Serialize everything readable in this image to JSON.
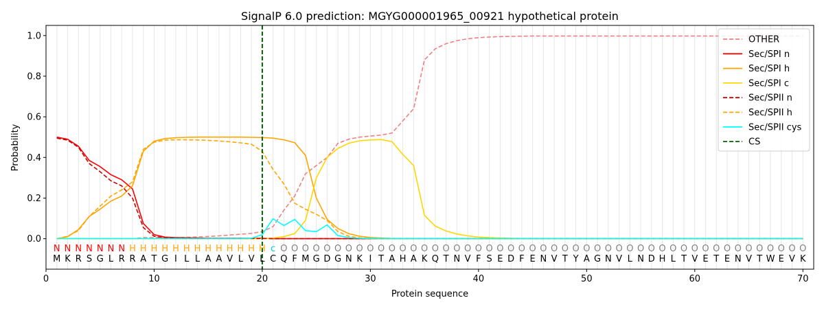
{
  "chart_data": {
    "type": "line",
    "title": "SignalP 6.0 prediction: MGYG000001965_00921 hypothetical protein",
    "xlabel": "Protein sequence",
    "ylabel": "Probability",
    "xlim": [
      0,
      71
    ],
    "ylim": [
      -0.15,
      1.05
    ],
    "xticks": [
      0,
      10,
      20,
      30,
      40,
      50,
      60,
      70
    ],
    "yticks": [
      0.0,
      0.2,
      0.4,
      0.6,
      0.8,
      1.0
    ],
    "ytick_labels": [
      "0.0",
      "0.2",
      "0.4",
      "0.6",
      "0.8",
      "1.0"
    ],
    "grid": "vertical lines at each residue",
    "legend_position": "top-right",
    "sequence": [
      "M",
      "K",
      "R",
      "S",
      "G",
      "L",
      "R",
      "R",
      "A",
      "T",
      "G",
      "I",
      "L",
      "L",
      "A",
      "A",
      "V",
      "L",
      "V",
      "L",
      "C",
      "Q",
      "F",
      "M",
      "G",
      "D",
      "G",
      "N",
      "K",
      "I",
      "T",
      "A",
      "H",
      "A",
      "K",
      "Q",
      "T",
      "N",
      "V",
      "F",
      "S",
      "E",
      "D",
      "F",
      "E",
      "N",
      "V",
      "T",
      "Y",
      "A",
      "G",
      "N",
      "V",
      "L",
      "N",
      "D",
      "H",
      "L",
      "T",
      "V",
      "E",
      "T",
      "E",
      "N",
      "V",
      "T",
      "W",
      "E",
      "V",
      "K"
    ],
    "labels": [
      "N",
      "N",
      "N",
      "N",
      "N",
      "N",
      "N",
      "H",
      "H",
      "H",
      "H",
      "H",
      "H",
      "H",
      "H",
      "H",
      "H",
      "H",
      "H",
      "H",
      "c",
      "O",
      "O",
      "O",
      "O",
      "O",
      "O",
      "O",
      "O",
      "O",
      "O",
      "O",
      "O",
      "O",
      "O",
      "O",
      "O",
      "O",
      "O",
      "O",
      "O",
      "O",
      "O",
      "O",
      "O",
      "O",
      "O",
      "O",
      "O",
      "O",
      "O",
      "O",
      "O",
      "O",
      "O",
      "O",
      "O",
      "O",
      "O",
      "O",
      "O",
      "O",
      "O",
      "O",
      "O",
      "O",
      "O",
      "O",
      "O",
      "O"
    ],
    "label_colors": {
      "N": "#ff0000",
      "H": "#ffa500",
      "c": "#00ced1",
      "O": "#808080"
    },
    "cleavage_site": 20,
    "series": [
      {
        "name": "OTHER",
        "color": "#f08080",
        "dash": "dashed",
        "values": [
          0.0,
          0.0,
          0.0,
          0.0,
          0.0,
          0.0,
          0.0,
          0.0,
          0.005,
          0.005,
          0.005,
          0.005,
          0.007,
          0.009,
          0.011,
          0.014,
          0.018,
          0.022,
          0.026,
          0.035,
          0.06,
          0.14,
          0.21,
          0.32,
          0.36,
          0.4,
          0.47,
          0.49,
          0.5,
          0.505,
          0.51,
          0.52,
          0.58,
          0.64,
          0.88,
          0.935,
          0.96,
          0.975,
          0.984,
          0.99,
          0.993,
          0.995,
          0.996,
          0.997,
          0.998,
          0.998,
          0.998,
          0.998,
          0.998,
          0.998,
          0.998,
          0.998,
          0.998,
          0.998,
          0.998,
          0.998,
          0.998,
          0.998,
          0.998,
          0.998,
          0.998,
          0.998,
          0.998,
          0.998,
          0.998,
          0.998,
          0.998,
          0.998,
          0.998,
          0.998
        ]
      },
      {
        "name": "Sec/SPI n",
        "color": "#ff0000",
        "dash": "solid",
        "values": [
          0.5,
          0.49,
          0.455,
          0.385,
          0.355,
          0.315,
          0.29,
          0.245,
          0.075,
          0.02,
          0.008,
          0.005,
          0.004,
          0.003,
          0.002,
          0.002,
          0.002,
          0.002,
          0.002,
          0.002,
          0.0,
          0.0,
          0.0,
          0.0,
          0.0,
          0.0,
          0.0,
          0.0,
          0.0,
          0.0,
          0.0,
          0.0,
          0.0,
          0.0,
          0.0,
          0.0,
          0.0,
          0.0,
          0.0,
          0.0,
          0.0,
          0.0,
          0.0,
          0.0,
          0.0,
          0.0,
          0.0,
          0.0,
          0.0,
          0.0,
          0.0,
          0.0,
          0.0,
          0.0,
          0.0,
          0.0,
          0.0,
          0.0,
          0.0,
          0.0,
          0.0,
          0.0,
          0.0,
          0.0,
          0.0,
          0.0,
          0.0,
          0.0,
          0.0,
          0.0
        ]
      },
      {
        "name": "Sec/SPI h",
        "color": "#ffa500",
        "dash": "solid",
        "values": [
          0.0,
          0.01,
          0.045,
          0.11,
          0.145,
          0.185,
          0.21,
          0.26,
          0.43,
          0.48,
          0.493,
          0.497,
          0.499,
          0.5,
          0.5,
          0.5,
          0.5,
          0.5,
          0.499,
          0.498,
          0.495,
          0.487,
          0.473,
          0.41,
          0.2,
          0.095,
          0.05,
          0.025,
          0.012,
          0.006,
          0.003,
          0.001,
          0.0,
          0.0,
          0.0,
          0.0,
          0.0,
          0.0,
          0.0,
          0.0,
          0.0,
          0.0,
          0.0,
          0.0,
          0.0,
          0.0,
          0.0,
          0.0,
          0.0,
          0.0,
          0.0,
          0.0,
          0.0,
          0.0,
          0.0,
          0.0,
          0.0,
          0.0,
          0.0,
          0.0,
          0.0,
          0.0,
          0.0,
          0.0,
          0.0,
          0.0,
          0.0,
          0.0,
          0.0,
          0.0
        ]
      },
      {
        "name": "Sec/SPI c",
        "color": "#ffd700",
        "dash": "solid",
        "values": [
          0.0,
          0.0,
          0.0,
          0.0,
          0.0,
          0.0,
          0.0,
          0.0,
          0.0,
          0.0,
          0.0,
          0.0,
          0.0,
          0.0,
          0.0,
          0.0,
          0.0,
          0.0,
          0.0,
          0.0,
          0.003,
          0.01,
          0.025,
          0.09,
          0.3,
          0.4,
          0.445,
          0.47,
          0.482,
          0.486,
          0.488,
          0.478,
          0.415,
          0.36,
          0.115,
          0.062,
          0.038,
          0.023,
          0.014,
          0.008,
          0.005,
          0.003,
          0.002,
          0.001,
          0.0,
          0.0,
          0.0,
          0.0,
          0.0,
          0.0,
          0.0,
          0.0,
          0.0,
          0.0,
          0.0,
          0.0,
          0.0,
          0.0,
          0.0,
          0.0,
          0.0,
          0.0,
          0.0,
          0.0,
          0.0,
          0.0,
          0.0,
          0.0,
          0.0,
          0.0
        ]
      },
      {
        "name": "Sec/SPII n",
        "color": "#cc0000",
        "dash": "dashed",
        "values": [
          0.495,
          0.485,
          0.45,
          0.37,
          0.33,
          0.285,
          0.26,
          0.2,
          0.055,
          0.012,
          0.004,
          0.002,
          0.001,
          0.001,
          0.001,
          0.001,
          0.001,
          0.001,
          0.001,
          0.001,
          0.0,
          0.0,
          0.0,
          0.0,
          0.0,
          0.0,
          0.0,
          0.0,
          0.0,
          0.0,
          0.0,
          0.0,
          0.0,
          0.0,
          0.0,
          0.0,
          0.0,
          0.0,
          0.0,
          0.0,
          0.0,
          0.0,
          0.0,
          0.0,
          0.0,
          0.0,
          0.0,
          0.0,
          0.0,
          0.0,
          0.0,
          0.0,
          0.0,
          0.0,
          0.0,
          0.0,
          0.0,
          0.0,
          0.0,
          0.0,
          0.0,
          0.0,
          0.0,
          0.0,
          0.0,
          0.0,
          0.0,
          0.0,
          0.0,
          0.0
        ]
      },
      {
        "name": "Sec/SPII h",
        "color": "#ffa500",
        "dash": "dashed",
        "values": [
          0.0,
          0.012,
          0.04,
          0.11,
          0.16,
          0.21,
          0.24,
          0.28,
          0.44,
          0.475,
          0.485,
          0.487,
          0.487,
          0.486,
          0.484,
          0.481,
          0.477,
          0.472,
          0.465,
          0.43,
          0.34,
          0.27,
          0.175,
          0.145,
          0.12,
          0.09,
          0.035,
          0.012,
          0.004,
          0.001,
          0.0,
          0.0,
          0.0,
          0.0,
          0.0,
          0.0,
          0.0,
          0.0,
          0.0,
          0.0,
          0.0,
          0.0,
          0.0,
          0.0,
          0.0,
          0.0,
          0.0,
          0.0,
          0.0,
          0.0,
          0.0,
          0.0,
          0.0,
          0.0,
          0.0,
          0.0,
          0.0,
          0.0,
          0.0,
          0.0,
          0.0,
          0.0,
          0.0,
          0.0,
          0.0,
          0.0,
          0.0,
          0.0,
          0.0,
          0.0
        ]
      },
      {
        "name": "Sec/SPII cys",
        "color": "#00ffff",
        "dash": "solid",
        "values": [
          0.0,
          0.0,
          0.0,
          0.0,
          0.0,
          0.0,
          0.0,
          0.0,
          0.0,
          0.0,
          0.0,
          0.0,
          0.0,
          0.0,
          0.0,
          0.0,
          0.0,
          0.0,
          0.002,
          0.02,
          0.098,
          0.065,
          0.095,
          0.04,
          0.035,
          0.068,
          0.015,
          0.006,
          0.002,
          0.001,
          0.0,
          0.0,
          0.0,
          0.0,
          0.0,
          0.0,
          0.0,
          0.0,
          0.0,
          0.0,
          0.0,
          0.0,
          0.0,
          0.0,
          0.0,
          0.0,
          0.0,
          0.0,
          0.0,
          0.0,
          0.0,
          0.0,
          0.0,
          0.0,
          0.0,
          0.0,
          0.0,
          0.0,
          0.0,
          0.0,
          0.0,
          0.0,
          0.0,
          0.0,
          0.0,
          0.0,
          0.0,
          0.0,
          0.0,
          0.0
        ]
      },
      {
        "name": "CS",
        "color": "#006400",
        "dash": "dashed",
        "type": "vline",
        "x": 20
      }
    ]
  }
}
